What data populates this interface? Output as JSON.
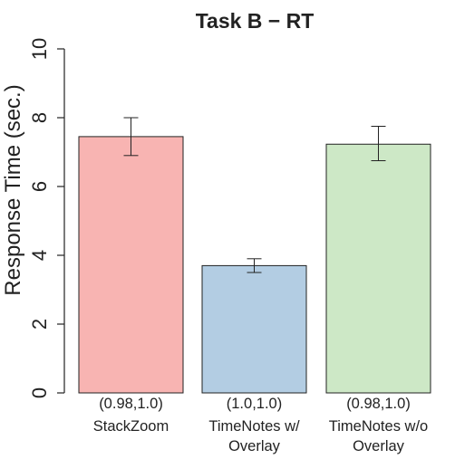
{
  "chart_data": {
    "type": "bar",
    "title": "Task B − RT",
    "ylabel": "Response Time (sec.)",
    "xlabel": "",
    "ylim": [
      0,
      10
    ],
    "yticks": [
      0,
      2,
      4,
      6,
      8,
      10
    ],
    "grid": false,
    "categories": [
      {
        "annotation": "(0.98,1.0)",
        "label_lines": [
          "StackZoom"
        ]
      },
      {
        "annotation": "(1.0,1.0)",
        "label_lines": [
          "TimeNotes w/",
          "Overlay"
        ]
      },
      {
        "annotation": "(0.98,1.0)",
        "label_lines": [
          "TimeNotes w/o",
          "Overlay"
        ]
      }
    ],
    "values": [
      7.45,
      3.7,
      7.23
    ],
    "errors": [
      {
        "low": 6.9,
        "high": 8.0
      },
      {
        "low": 3.5,
        "high": 3.9
      },
      {
        "low": 6.75,
        "high": 7.75
      }
    ],
    "colors": [
      "#f8b4b2",
      "#b3cde3",
      "#cde8c6"
    ]
  }
}
